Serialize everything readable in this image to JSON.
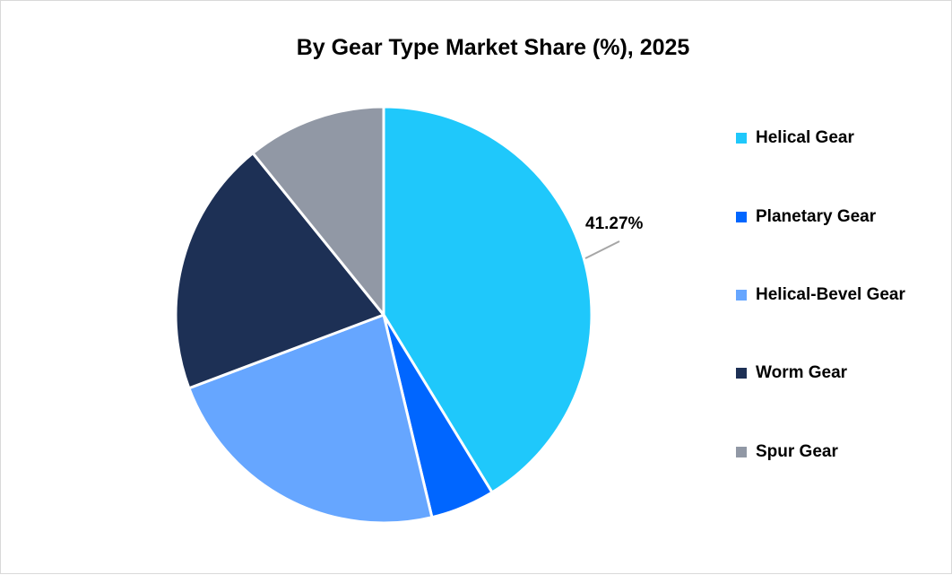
{
  "chart_data": {
    "type": "pie",
    "title": "By Gear Type Market Share (%), 2025",
    "categories": [
      "Helical Gear",
      "Planetary Gear",
      "Helical-Bevel Gear",
      "Worm Gear",
      "Spur Gear"
    ],
    "values": [
      41.27,
      5.0,
      23.0,
      19.9,
      10.83
    ],
    "colors": [
      "#1fc8fb",
      "#0066ff",
      "#66a6ff",
      "#1d3055",
      "#9198a5"
    ],
    "data_labels": [
      {
        "category": "Helical Gear",
        "text": "41.27%"
      }
    ],
    "legend_position": "right"
  },
  "legend": {
    "items": [
      {
        "label": "Helical Gear",
        "color": "#1fc8fb"
      },
      {
        "label": "Planetary Gear",
        "color": "#0066ff"
      },
      {
        "label": "Helical-Bevel Gear",
        "color": "#66a6ff"
      },
      {
        "label": "Worm Gear",
        "color": "#1d3055"
      },
      {
        "label": "Spur Gear",
        "color": "#9198a5"
      }
    ]
  },
  "labels": {
    "helical": "41.27%"
  }
}
